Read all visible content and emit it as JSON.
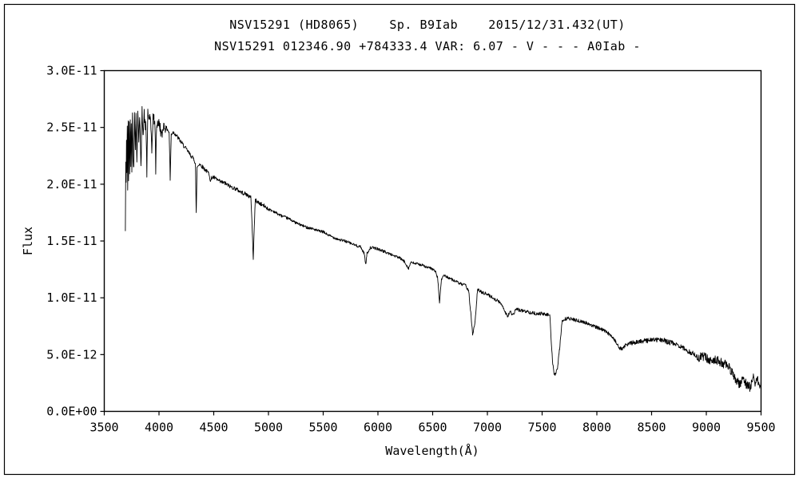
{
  "chart_data": {
    "type": "line",
    "title": "NSV15291 (HD8065)    Sp. B9Iab    2015/12/31.432(UT)",
    "subtitle": "NSV15291 012346.90 +784333.4 VAR: 6.07 - V - - - A0Iab -",
    "xlabel": "Wavelength(Å)",
    "ylabel": "Flux",
    "xlim": [
      3500,
      9500
    ],
    "ylim": [
      0,
      3e-11
    ],
    "flux_unit_scale": 1e-11,
    "grid": false,
    "legend": "none",
    "line_color": "#000000",
    "background_color": "#ffffff",
    "xticks": [
      3500,
      4000,
      4500,
      5000,
      5500,
      6000,
      6500,
      7000,
      7500,
      8000,
      8500,
      9000,
      9500
    ],
    "yticks": [
      {
        "v": 0.0,
        "label": "0.0E+00"
      },
      {
        "v": 0.5,
        "label": "5.0E-12"
      },
      {
        "v": 1.0,
        "label": "1.0E-11"
      },
      {
        "v": 1.5,
        "label": "1.5E-11"
      },
      {
        "v": 2.0,
        "label": "2.0E-11"
      },
      {
        "v": 2.5,
        "label": "2.5E-11"
      },
      {
        "v": 3.0,
        "label": "3.0E-11"
      }
    ],
    "noise": {
      "seed": 42,
      "step": 3,
      "segments": [
        {
          "from": 3690,
          "to": 4060,
          "amp": 0.05
        },
        {
          "from": 4060,
          "to": 5000,
          "amp": 0.018
        },
        {
          "from": 5000,
          "to": 6800,
          "amp": 0.012
        },
        {
          "from": 6800,
          "to": 8300,
          "amp": 0.015
        },
        {
          "from": 8300,
          "to": 8900,
          "amp": 0.022
        },
        {
          "from": 8900,
          "to": 9500,
          "amp": 0.04
        }
      ]
    },
    "series": [
      {
        "name": "spectrum",
        "points": [
          [
            3693,
            1.58
          ],
          [
            3696,
            2.2
          ],
          [
            3700,
            2.0
          ],
          [
            3703,
            2.42
          ],
          [
            3706,
            2.1
          ],
          [
            3710,
            2.5
          ],
          [
            3714,
            1.95
          ],
          [
            3718,
            2.52
          ],
          [
            3722,
            2.05
          ],
          [
            3727,
            2.55
          ],
          [
            3732,
            2.08
          ],
          [
            3737,
            2.57
          ],
          [
            3742,
            2.2
          ],
          [
            3747,
            2.58
          ],
          [
            3752,
            2.15
          ],
          [
            3758,
            2.6
          ],
          [
            3764,
            2.25
          ],
          [
            3770,
            2.12
          ],
          [
            3776,
            2.6
          ],
          [
            3784,
            2.35
          ],
          [
            3790,
            2.62
          ],
          [
            3798,
            2.18
          ],
          [
            3806,
            2.62
          ],
          [
            3815,
            2.4
          ],
          [
            3823,
            2.63
          ],
          [
            3835,
            2.12
          ],
          [
            3845,
            2.64
          ],
          [
            3856,
            2.45
          ],
          [
            3865,
            2.62
          ],
          [
            3875,
            2.5
          ],
          [
            3880,
            2.55
          ],
          [
            3889,
            2.1
          ],
          [
            3898,
            2.62
          ],
          [
            3910,
            2.58
          ],
          [
            3920,
            2.6
          ],
          [
            3934,
            2.28
          ],
          [
            3945,
            2.6
          ],
          [
            3955,
            2.57
          ],
          [
            3964,
            2.5
          ],
          [
            3970,
            2.12
          ],
          [
            3978,
            2.52
          ],
          [
            3990,
            2.55
          ],
          [
            4000,
            2.53
          ],
          [
            4010,
            2.5
          ],
          [
            4026,
            2.42
          ],
          [
            4040,
            2.52
          ],
          [
            4060,
            2.5
          ],
          [
            4080,
            2.48
          ],
          [
            4093,
            2.45
          ],
          [
            4102,
            2.04
          ],
          [
            4112,
            2.44
          ],
          [
            4130,
            2.46
          ],
          [
            4150,
            2.44
          ],
          [
            4180,
            2.4
          ],
          [
            4210,
            2.36
          ],
          [
            4240,
            2.32
          ],
          [
            4270,
            2.28
          ],
          [
            4300,
            2.24
          ],
          [
            4320,
            2.22
          ],
          [
            4333,
            2.18
          ],
          [
            4340,
            1.74
          ],
          [
            4348,
            2.15
          ],
          [
            4370,
            2.18
          ],
          [
            4400,
            2.15
          ],
          [
            4430,
            2.12
          ],
          [
            4460,
            2.09
          ],
          [
            4471,
            2.02
          ],
          [
            4482,
            2.06
          ],
          [
            4500,
            2.06
          ],
          [
            4530,
            2.04
          ],
          [
            4560,
            2.02
          ],
          [
            4600,
            2.01
          ],
          [
            4650,
            1.98
          ],
          [
            4700,
            1.96
          ],
          [
            4750,
            1.93
          ],
          [
            4800,
            1.91
          ],
          [
            4840,
            1.88
          ],
          [
            4852,
            1.6
          ],
          [
            4861,
            1.35
          ],
          [
            4870,
            1.62
          ],
          [
            4880,
            1.86
          ],
          [
            4920,
            1.83
          ],
          [
            4960,
            1.81
          ],
          [
            5000,
            1.78
          ],
          [
            5050,
            1.76
          ],
          [
            5100,
            1.73
          ],
          [
            5150,
            1.71
          ],
          [
            5200,
            1.69
          ],
          [
            5250,
            1.66
          ],
          [
            5300,
            1.64
          ],
          [
            5350,
            1.62
          ],
          [
            5400,
            1.61
          ],
          [
            5450,
            1.59
          ],
          [
            5500,
            1.58
          ],
          [
            5550,
            1.55
          ],
          [
            5600,
            1.53
          ],
          [
            5650,
            1.51
          ],
          [
            5700,
            1.5
          ],
          [
            5750,
            1.48
          ],
          [
            5800,
            1.46
          ],
          [
            5840,
            1.45
          ],
          [
            5875,
            1.39
          ],
          [
            5889,
            1.29
          ],
          [
            5900,
            1.39
          ],
          [
            5930,
            1.44
          ],
          [
            5960,
            1.44
          ],
          [
            6000,
            1.43
          ],
          [
            6050,
            1.41
          ],
          [
            6100,
            1.39
          ],
          [
            6150,
            1.37
          ],
          [
            6200,
            1.35
          ],
          [
            6240,
            1.32
          ],
          [
            6280,
            1.26
          ],
          [
            6300,
            1.31
          ],
          [
            6350,
            1.3
          ],
          [
            6400,
            1.29
          ],
          [
            6440,
            1.27
          ],
          [
            6480,
            1.26
          ],
          [
            6520,
            1.24
          ],
          [
            6545,
            1.18
          ],
          [
            6563,
            0.96
          ],
          [
            6580,
            1.16
          ],
          [
            6600,
            1.2
          ],
          [
            6640,
            1.18
          ],
          [
            6680,
            1.16
          ],
          [
            6720,
            1.14
          ],
          [
            6760,
            1.12
          ],
          [
            6800,
            1.11
          ],
          [
            6830,
            1.06
          ],
          [
            6865,
            0.68
          ],
          [
            6885,
            0.76
          ],
          [
            6910,
            1.07
          ],
          [
            6950,
            1.05
          ],
          [
            7000,
            1.03
          ],
          [
            7050,
            1.0
          ],
          [
            7100,
            0.97
          ],
          [
            7140,
            0.93
          ],
          [
            7165,
            0.87
          ],
          [
            7185,
            0.84
          ],
          [
            7210,
            0.88
          ],
          [
            7230,
            0.84
          ],
          [
            7260,
            0.9
          ],
          [
            7300,
            0.89
          ],
          [
            7350,
            0.88
          ],
          [
            7400,
            0.87
          ],
          [
            7450,
            0.86
          ],
          [
            7500,
            0.86
          ],
          [
            7540,
            0.85
          ],
          [
            7570,
            0.85
          ],
          [
            7594,
            0.45
          ],
          [
            7610,
            0.32
          ],
          [
            7625,
            0.33
          ],
          [
            7640,
            0.38
          ],
          [
            7660,
            0.55
          ],
          [
            7680,
            0.78
          ],
          [
            7700,
            0.81
          ],
          [
            7740,
            0.82
          ],
          [
            7780,
            0.81
          ],
          [
            7820,
            0.8
          ],
          [
            7860,
            0.79
          ],
          [
            7900,
            0.78
          ],
          [
            7950,
            0.76
          ],
          [
            8000,
            0.74
          ],
          [
            8050,
            0.72
          ],
          [
            8100,
            0.69
          ],
          [
            8140,
            0.66
          ],
          [
            8170,
            0.62
          ],
          [
            8200,
            0.56
          ],
          [
            8230,
            0.55
          ],
          [
            8260,
            0.58
          ],
          [
            8300,
            0.6
          ],
          [
            8350,
            0.61
          ],
          [
            8400,
            0.62
          ],
          [
            8450,
            0.62
          ],
          [
            8500,
            0.63
          ],
          [
            8550,
            0.63
          ],
          [
            8600,
            0.63
          ],
          [
            8650,
            0.61
          ],
          [
            8700,
            0.6
          ],
          [
            8750,
            0.58
          ],
          [
            8800,
            0.55
          ],
          [
            8850,
            0.52
          ],
          [
            8900,
            0.5
          ],
          [
            8930,
            0.46
          ],
          [
            8960,
            0.49
          ],
          [
            9000,
            0.47
          ],
          [
            9030,
            0.44
          ],
          [
            9060,
            0.46
          ],
          [
            9100,
            0.45
          ],
          [
            9140,
            0.43
          ],
          [
            9180,
            0.41
          ],
          [
            9220,
            0.37
          ],
          [
            9250,
            0.32
          ],
          [
            9280,
            0.26
          ],
          [
            9310,
            0.24
          ],
          [
            9340,
            0.29
          ],
          [
            9370,
            0.23
          ],
          [
            9400,
            0.21
          ],
          [
            9430,
            0.3
          ],
          [
            9450,
            0.24
          ],
          [
            9470,
            0.28
          ],
          [
            9490,
            0.2
          ],
          [
            9500,
            0.27
          ]
        ]
      }
    ]
  }
}
